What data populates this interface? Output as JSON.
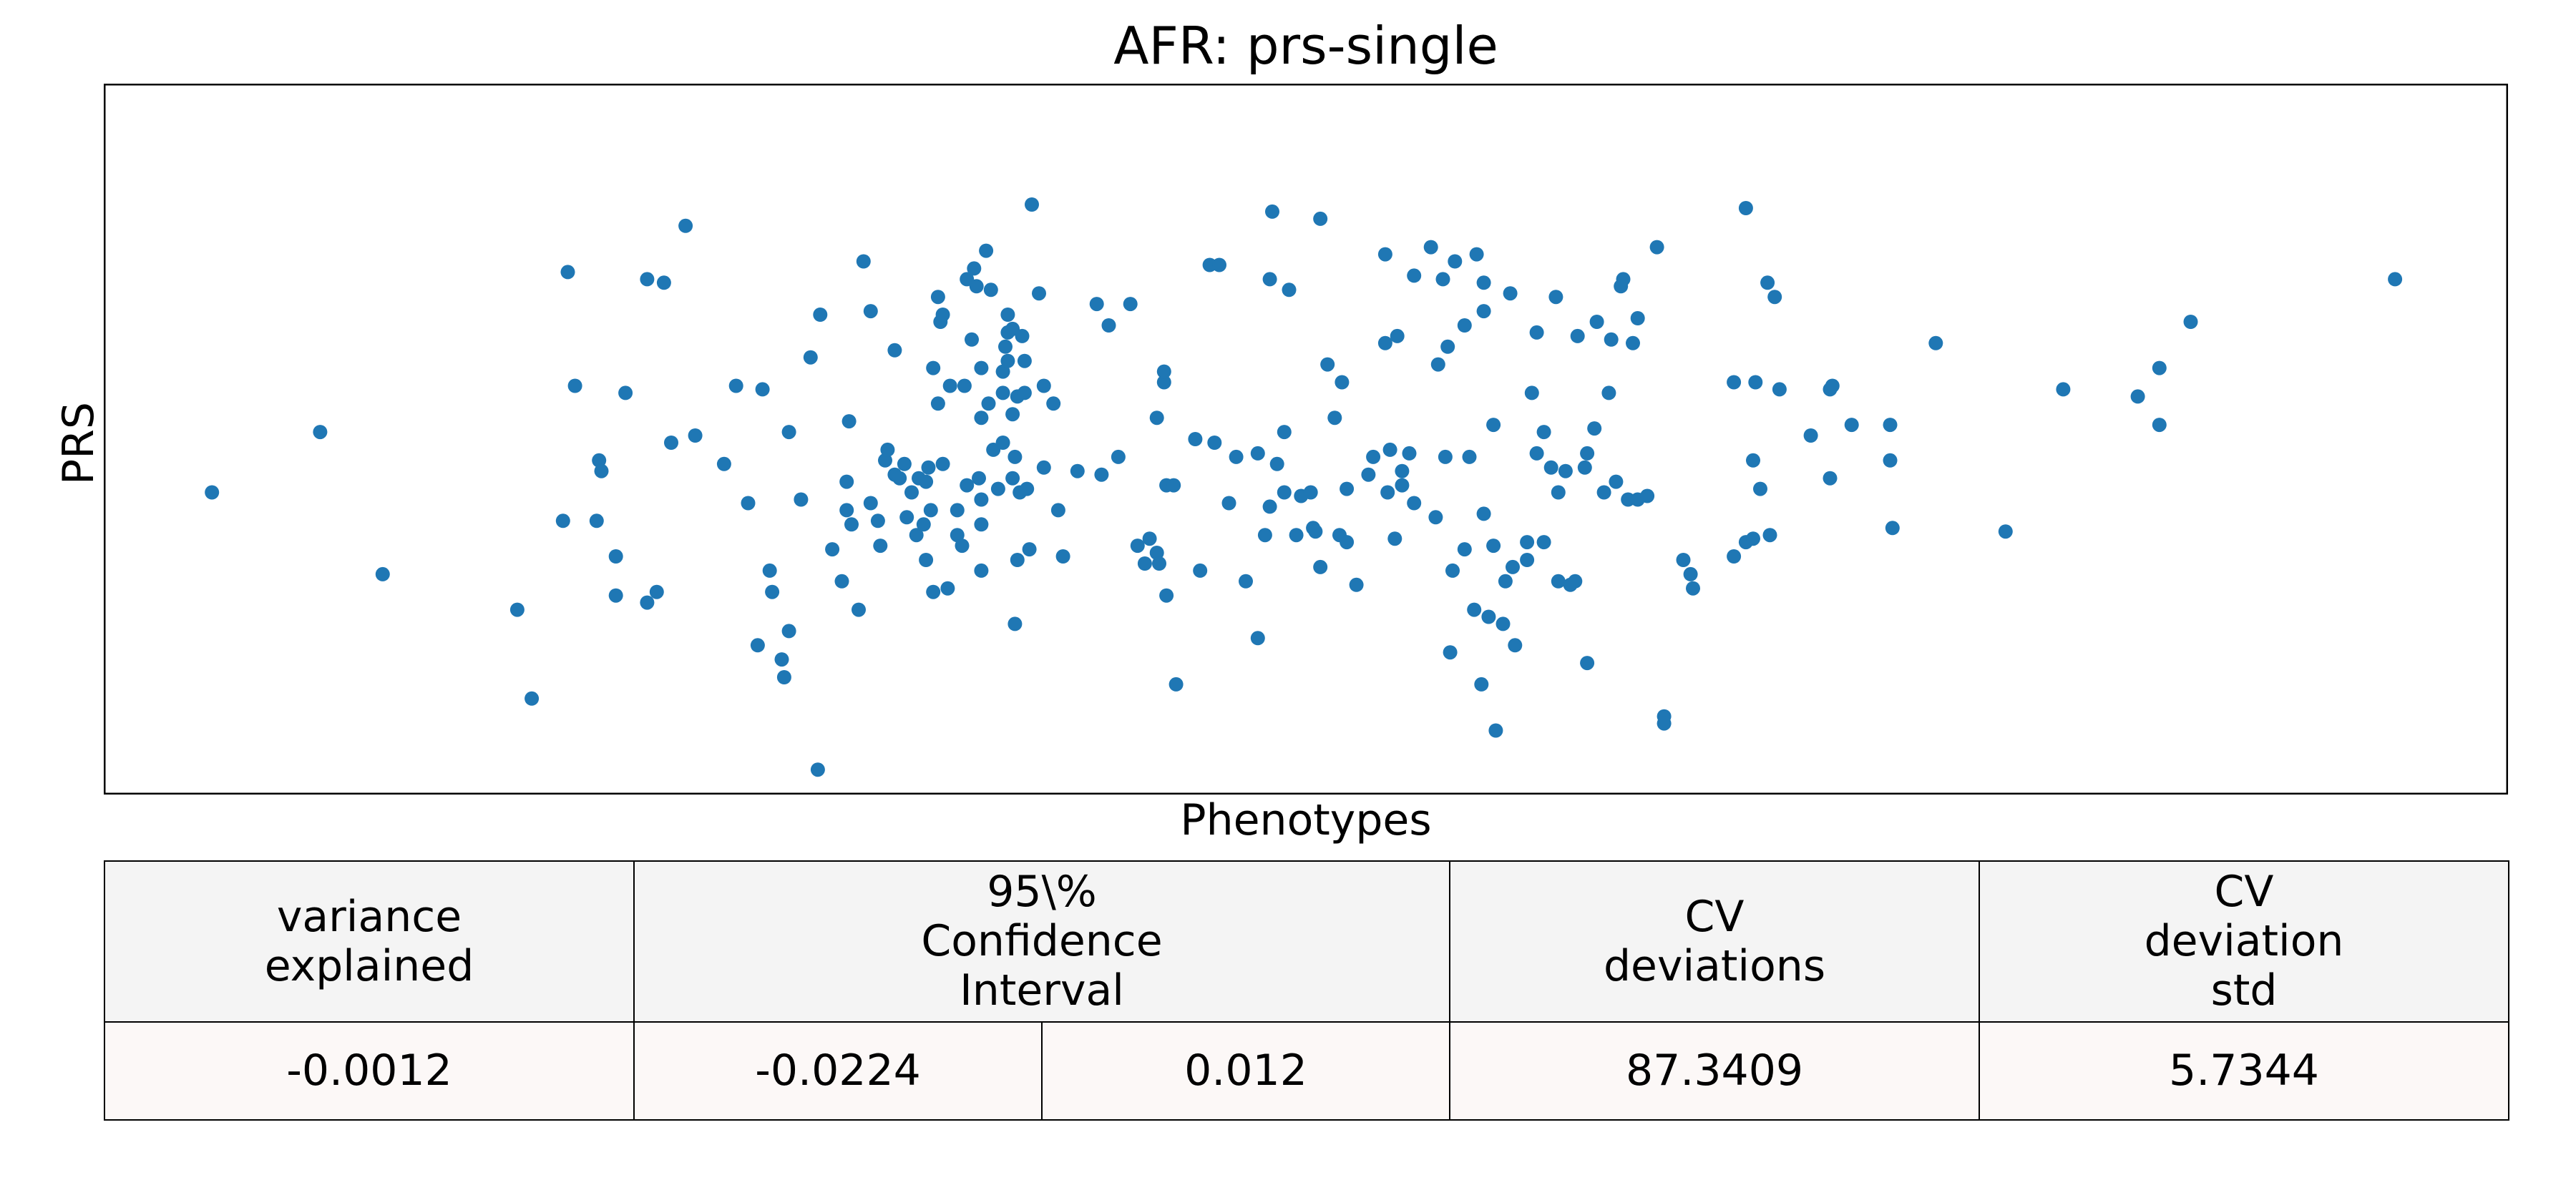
{
  "chart_data": {
    "type": "scatter",
    "title": "AFR: prs-single",
    "xlabel": "Phenotypes",
    "ylabel": "PRS",
    "x_ticks": "none",
    "y_ticks": "none",
    "xlim": [
      0,
      100
    ],
    "ylim": [
      0,
      100
    ],
    "grid": false,
    "color": "#1f77b4",
    "points": [
      [
        4.5,
        42.5
      ],
      [
        9.0,
        51.0
      ],
      [
        11.6,
        31.0
      ],
      [
        17.2,
        26.0
      ],
      [
        17.8,
        13.5
      ],
      [
        19.1,
        38.5
      ],
      [
        19.3,
        73.5
      ],
      [
        19.6,
        57.5
      ],
      [
        20.6,
        47.0
      ],
      [
        21.3,
        33.5
      ],
      [
        20.5,
        38.5
      ],
      [
        20.7,
        45.5
      ],
      [
        21.3,
        28.0
      ],
      [
        21.7,
        56.5
      ],
      [
        22.6,
        72.5
      ],
      [
        22.6,
        27.0
      ],
      [
        23.0,
        28.5
      ],
      [
        23.6,
        49.5
      ],
      [
        23.3,
        72.0
      ],
      [
        24.2,
        80.0
      ],
      [
        24.6,
        50.5
      ],
      [
        25.8,
        46.5
      ],
      [
        26.3,
        57.5
      ],
      [
        26.8,
        41.0
      ],
      [
        27.2,
        21.0
      ],
      [
        27.4,
        57.0
      ],
      [
        27.7,
        31.5
      ],
      [
        27.8,
        28.5
      ],
      [
        28.2,
        19.0
      ],
      [
        28.3,
        16.5
      ],
      [
        28.5,
        51.0
      ],
      [
        28.5,
        23.0
      ],
      [
        29.0,
        41.5
      ],
      [
        29.4,
        61.5
      ],
      [
        29.8,
        67.5
      ],
      [
        29.7,
        3.5
      ],
      [
        30.3,
        34.5
      ],
      [
        30.7,
        30.0
      ],
      [
        30.9,
        44.0
      ],
      [
        30.9,
        40.0
      ],
      [
        31.0,
        52.5
      ],
      [
        31.1,
        38.0
      ],
      [
        31.4,
        26.0
      ],
      [
        31.6,
        75.0
      ],
      [
        31.9,
        68.0
      ],
      [
        31.9,
        41.0
      ],
      [
        32.2,
        38.5
      ],
      [
        32.3,
        35.0
      ],
      [
        32.5,
        47.0
      ],
      [
        32.6,
        48.5
      ],
      [
        32.9,
        45.0
      ],
      [
        32.9,
        62.5
      ],
      [
        33.1,
        44.5
      ],
      [
        33.3,
        46.5
      ],
      [
        33.4,
        39.0
      ],
      [
        33.6,
        42.5
      ],
      [
        33.8,
        36.5
      ],
      [
        33.9,
        44.5
      ],
      [
        34.1,
        38.0
      ],
      [
        34.2,
        44.0
      ],
      [
        34.3,
        46.0
      ],
      [
        34.4,
        40.0
      ],
      [
        34.2,
        33.0
      ],
      [
        34.5,
        60.0
      ],
      [
        34.5,
        28.5
      ],
      [
        34.7,
        55.0
      ],
      [
        34.7,
        70.0
      ],
      [
        34.8,
        66.5
      ],
      [
        34.9,
        67.5
      ],
      [
        34.9,
        46.5
      ],
      [
        35.1,
        29.0
      ],
      [
        35.2,
        57.5
      ],
      [
        35.5,
        40.0
      ],
      [
        35.8,
        57.5
      ],
      [
        35.5,
        36.5
      ],
      [
        35.7,
        35.0
      ],
      [
        35.9,
        43.5
      ],
      [
        35.9,
        72.5
      ],
      [
        36.2,
        74.0
      ],
      [
        36.1,
        64.0
      ],
      [
        36.3,
        71.5
      ],
      [
        36.4,
        44.5
      ],
      [
        36.5,
        60.0
      ],
      [
        36.5,
        38.0
      ],
      [
        36.5,
        41.5
      ],
      [
        36.5,
        31.5
      ],
      [
        36.7,
        76.5
      ],
      [
        36.9,
        71.0
      ],
      [
        36.8,
        55.0
      ],
      [
        36.5,
        53.0
      ],
      [
        37.0,
        48.5
      ],
      [
        37.4,
        59.5
      ],
      [
        37.4,
        56.5
      ],
      [
        37.4,
        49.5
      ],
      [
        37.2,
        43.0
      ],
      [
        37.6,
        61.0
      ],
      [
        37.5,
        63.0
      ],
      [
        37.6,
        67.5
      ],
      [
        37.6,
        65.0
      ],
      [
        37.8,
        65.5
      ],
      [
        37.8,
        44.5
      ],
      [
        37.9,
        47.5
      ],
      [
        37.8,
        53.5
      ],
      [
        38.0,
        56.0
      ],
      [
        38.1,
        42.5
      ],
      [
        38.0,
        33.0
      ],
      [
        37.9,
        24.0
      ],
      [
        38.2,
        64.5
      ],
      [
        38.3,
        61.0
      ],
      [
        38.3,
        56.5
      ],
      [
        38.4,
        43.0
      ],
      [
        38.6,
        83.0
      ],
      [
        38.5,
        34.5
      ],
      [
        38.9,
        70.5
      ],
      [
        39.1,
        57.5
      ],
      [
        39.1,
        46.0
      ],
      [
        39.5,
        55.0
      ],
      [
        39.7,
        40.0
      ],
      [
        39.9,
        33.5
      ],
      [
        40.5,
        45.5
      ],
      [
        41.3,
        69.0
      ],
      [
        41.5,
        45.0
      ],
      [
        41.8,
        66.0
      ],
      [
        42.2,
        47.5
      ],
      [
        42.7,
        69.0
      ],
      [
        43.0,
        35.0
      ],
      [
        43.3,
        32.5
      ],
      [
        43.5,
        36.0
      ],
      [
        43.8,
        34.0
      ],
      [
        43.8,
        53.0
      ],
      [
        43.9,
        32.5
      ],
      [
        44.1,
        58.0
      ],
      [
        44.1,
        59.5
      ],
      [
        44.2,
        43.5
      ],
      [
        44.2,
        28.0
      ],
      [
        44.5,
        43.5
      ],
      [
        44.6,
        15.5
      ],
      [
        45.4,
        50.0
      ],
      [
        45.6,
        31.5
      ],
      [
        46.0,
        74.5
      ],
      [
        46.2,
        49.5
      ],
      [
        46.4,
        74.5
      ],
      [
        46.8,
        41.0
      ],
      [
        47.1,
        47.5
      ],
      [
        47.5,
        30.0
      ],
      [
        48.0,
        48.0
      ],
      [
        48.5,
        72.5
      ],
      [
        48.6,
        82.0
      ],
      [
        48.0,
        22.0
      ],
      [
        48.3,
        36.5
      ],
      [
        48.5,
        40.5
      ],
      [
        48.8,
        46.5
      ],
      [
        49.1,
        42.5
      ],
      [
        49.1,
        51.0
      ],
      [
        49.3,
        71.0
      ],
      [
        49.6,
        36.5
      ],
      [
        49.8,
        42.0
      ],
      [
        50.2,
        42.5
      ],
      [
        50.3,
        37.5
      ],
      [
        50.6,
        81.0
      ],
      [
        50.4,
        37.0
      ],
      [
        50.9,
        60.5
      ],
      [
        50.6,
        32.0
      ],
      [
        51.2,
        53.0
      ],
      [
        51.4,
        36.5
      ],
      [
        51.7,
        35.5
      ],
      [
        51.5,
        58.0
      ],
      [
        51.7,
        43.0
      ],
      [
        52.1,
        29.5
      ],
      [
        52.6,
        45.0
      ],
      [
        52.8,
        47.5
      ],
      [
        53.3,
        76.0
      ],
      [
        53.3,
        63.5
      ],
      [
        53.4,
        42.5
      ],
      [
        53.5,
        48.5
      ],
      [
        53.7,
        36.0
      ],
      [
        53.8,
        64.5
      ],
      [
        54.0,
        45.5
      ],
      [
        54.0,
        43.5
      ],
      [
        54.5,
        73.0
      ],
      [
        54.3,
        48.0
      ],
      [
        54.5,
        41.0
      ],
      [
        55.2,
        77.0
      ],
      [
        55.4,
        39.0
      ],
      [
        55.5,
        60.5
      ],
      [
        55.8,
        47.5
      ],
      [
        55.7,
        72.5
      ],
      [
        55.9,
        63.0
      ],
      [
        56.1,
        31.5
      ],
      [
        56.0,
        20.0
      ],
      [
        56.2,
        75.0
      ],
      [
        56.6,
        34.5
      ],
      [
        56.6,
        66.0
      ],
      [
        56.8,
        47.5
      ],
      [
        57.0,
        26.0
      ],
      [
        57.1,
        76.0
      ],
      [
        57.4,
        72.0
      ],
      [
        57.3,
        15.5
      ],
      [
        57.4,
        39.5
      ],
      [
        57.4,
        68.0
      ],
      [
        57.6,
        25.0
      ],
      [
        57.9,
        9.0
      ],
      [
        57.8,
        52.0
      ],
      [
        58.2,
        24.0
      ],
      [
        57.8,
        35.0
      ],
      [
        58.3,
        30.0
      ],
      [
        58.5,
        70.5
      ],
      [
        58.6,
        32.0
      ],
      [
        58.7,
        21.0
      ],
      [
        59.2,
        33.0
      ],
      [
        59.4,
        56.5
      ],
      [
        59.2,
        35.5
      ],
      [
        59.6,
        65.0
      ],
      [
        59.6,
        48.0
      ],
      [
        59.9,
        51.0
      ],
      [
        59.9,
        35.5
      ],
      [
        60.2,
        46.0
      ],
      [
        60.4,
        70.0
      ],
      [
        60.5,
        30.0
      ],
      [
        60.5,
        42.5
      ],
      [
        60.8,
        45.5
      ],
      [
        61.0,
        29.5
      ],
      [
        61.3,
        64.5
      ],
      [
        61.2,
        30.0
      ],
      [
        61.6,
        46.0
      ],
      [
        61.7,
        18.5
      ],
      [
        61.7,
        48.0
      ],
      [
        62.0,
        51.5
      ],
      [
        62.1,
        66.5
      ],
      [
        62.4,
        42.5
      ],
      [
        62.6,
        56.5
      ],
      [
        62.7,
        64.0
      ],
      [
        62.9,
        44.0
      ],
      [
        63.2,
        72.5
      ],
      [
        63.1,
        71.5
      ],
      [
        63.4,
        41.5
      ],
      [
        63.6,
        63.5
      ],
      [
        63.8,
        67.0
      ],
      [
        63.8,
        41.5
      ],
      [
        64.2,
        42.0
      ],
      [
        64.6,
        77.0
      ],
      [
        64.9,
        11.0
      ],
      [
        64.9,
        10.0
      ],
      [
        65.7,
        33.0
      ],
      [
        66.0,
        31.0
      ],
      [
        66.1,
        29.0
      ],
      [
        67.8,
        33.5
      ],
      [
        67.8,
        58.0
      ],
      [
        68.3,
        35.5
      ],
      [
        68.3,
        82.5
      ],
      [
        68.6,
        36.0
      ],
      [
        68.6,
        47.0
      ],
      [
        68.7,
        58.0
      ],
      [
        68.9,
        43.0
      ],
      [
        69.2,
        72.0
      ],
      [
        69.3,
        36.5
      ],
      [
        69.5,
        70.0
      ],
      [
        69.7,
        57.0
      ],
      [
        71.0,
        50.5
      ],
      [
        71.8,
        44.5
      ],
      [
        71.8,
        57.0
      ],
      [
        71.9,
        57.5
      ],
      [
        72.7,
        52.0
      ],
      [
        74.3,
        52.0
      ],
      [
        74.3,
        47.0
      ],
      [
        74.4,
        37.5
      ],
      [
        76.2,
        63.5
      ],
      [
        79.1,
        37.0
      ],
      [
        81.5,
        57.0
      ],
      [
        84.6,
        56.0
      ],
      [
        85.5,
        52.0
      ],
      [
        85.5,
        60.0
      ],
      [
        86.8,
        66.5
      ],
      [
        95.3,
        72.5
      ]
    ]
  },
  "table": {
    "headers": {
      "variance": [
        "variance",
        "explained"
      ],
      "ci": [
        "95\\%",
        "Confidence",
        "Interval"
      ],
      "cv_dev": [
        "CV",
        "deviations"
      ],
      "cv_std": [
        "CV",
        "deviation",
        "std"
      ]
    },
    "values": {
      "variance": "-0.0012",
      "ci_low": "-0.0224",
      "ci_high": "0.012",
      "cv_dev": "87.3409",
      "cv_std": "5.7344"
    }
  }
}
